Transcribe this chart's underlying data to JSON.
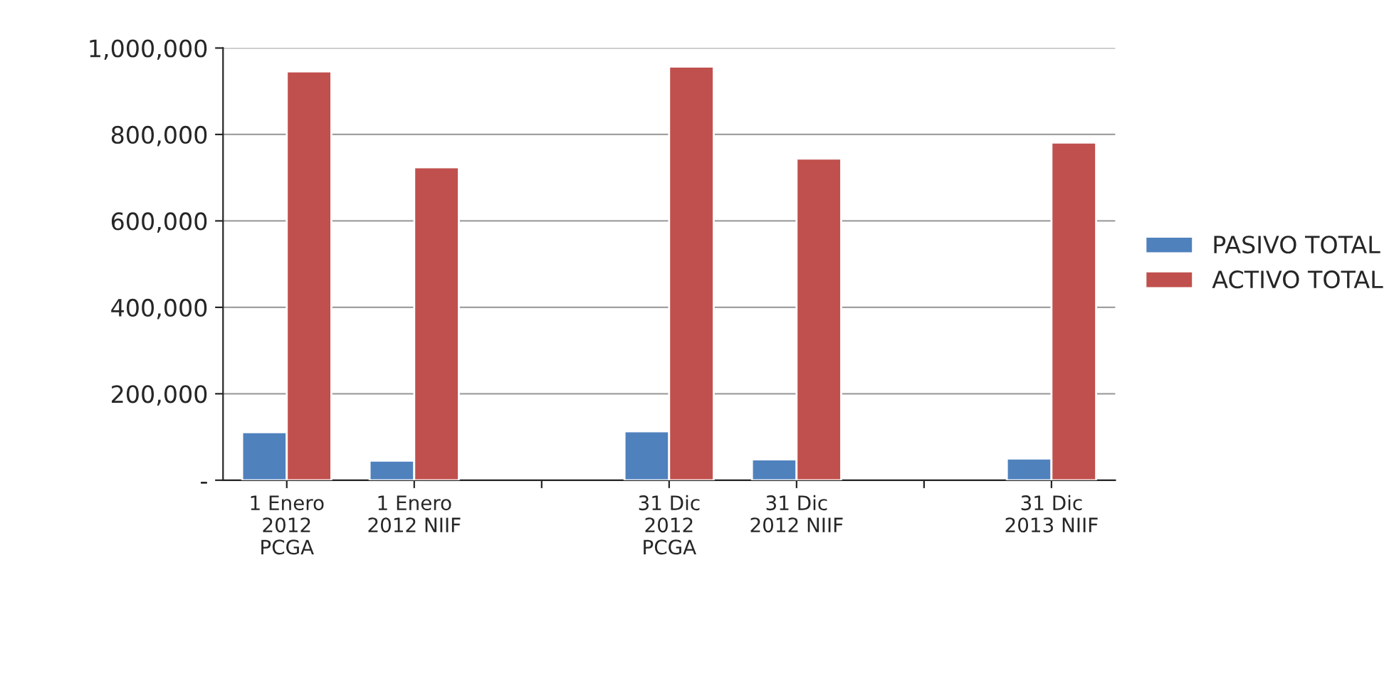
{
  "chart_data": {
    "type": "bar",
    "categories": [
      "1 Enero\n2012\nPCGA",
      "1 Enero\n2012 NIIF",
      null,
      "31 Dic\n2012\nPCGA",
      "31 Dic\n2012 NIIF",
      null,
      "31 Dic\n2013 NIIF"
    ],
    "series": [
      {
        "name": "PASIVO TOTAL",
        "color": "#4f81bd",
        "values": [
          111000,
          45000,
          null,
          113000,
          48000,
          null,
          50000
        ]
      },
      {
        "name": "ACTIVO TOTAL",
        "color": "#c0504d",
        "values": [
          946000,
          724000,
          null,
          957000,
          744000,
          null,
          781000
        ]
      }
    ],
    "ylim": [
      0,
      1000000
    ],
    "yticks": [
      {
        "value": 0,
        "label": "-"
      },
      {
        "value": 200000,
        "label": "200,000"
      },
      {
        "value": 400000,
        "label": "400,000"
      },
      {
        "value": 600000,
        "label": "600,000"
      },
      {
        "value": 800000,
        "label": "800,000"
      },
      {
        "value": 1000000,
        "label": "1,000,000"
      }
    ],
    "grid": "y",
    "legend": "right"
  }
}
